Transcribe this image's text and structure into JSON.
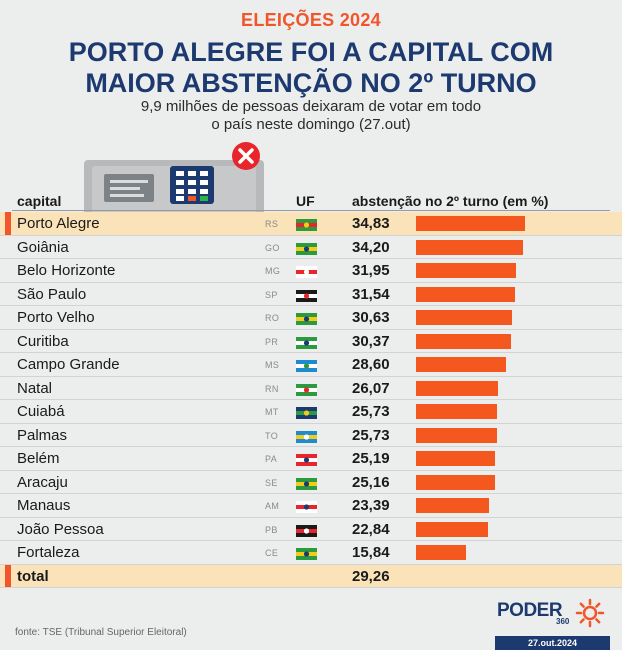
{
  "header": {
    "kicker": "ELEIÇÕES 2024",
    "headline_line1": "PORTO ALEGRE FOI A CAPITAL COM",
    "headline_line2": "MAIOR ABSTENÇÃO NO 2º TURNO",
    "subtitle_line1": "9,9 milhões de pessoas deixaram de votar em todo",
    "subtitle_line2": "o país neste domingo (27.out)"
  },
  "columns": {
    "capital": "capital",
    "uf": "UF",
    "abstention": "abstenção no 2º turno (em %)"
  },
  "colors": {
    "accent": "#f0562a",
    "bar": "#f5581f",
    "navy": "#1d3a70",
    "highlight": "#fbe3b9"
  },
  "chart_data": {
    "type": "bar",
    "orientation": "horizontal",
    "unit": "%",
    "xlim": [
      0,
      34.83
    ],
    "rows": [
      {
        "capital": "Porto Alegre",
        "uf": "RS",
        "value": 34.83,
        "label": "34,83",
        "highlight": true
      },
      {
        "capital": "Goiânia",
        "uf": "GO",
        "value": 34.2,
        "label": "34,20"
      },
      {
        "capital": "Belo Horizonte",
        "uf": "MG",
        "value": 31.95,
        "label": "31,95"
      },
      {
        "capital": "São Paulo",
        "uf": "SP",
        "value": 31.54,
        "label": "31,54"
      },
      {
        "capital": "Porto Velho",
        "uf": "RO",
        "value": 30.63,
        "label": "30,63"
      },
      {
        "capital": "Curitiba",
        "uf": "PR",
        "value": 30.37,
        "label": "30,37"
      },
      {
        "capital": "Campo Grande",
        "uf": "MS",
        "value": 28.6,
        "label": "28,60"
      },
      {
        "capital": "Natal",
        "uf": "RN",
        "value": 26.07,
        "label": "26,07"
      },
      {
        "capital": "Cuiabá",
        "uf": "MT",
        "value": 25.73,
        "label": "25,73"
      },
      {
        "capital": "Palmas",
        "uf": "TO",
        "value": 25.73,
        "label": "25,73"
      },
      {
        "capital": "Belém",
        "uf": "PA",
        "value": 25.19,
        "label": "25,19"
      },
      {
        "capital": "Aracaju",
        "uf": "SE",
        "value": 25.16,
        "label": "25,16"
      },
      {
        "capital": "Manaus",
        "uf": "AM",
        "value": 23.39,
        "label": "23,39"
      },
      {
        "capital": "João Pessoa",
        "uf": "PB",
        "value": 22.84,
        "label": "22,84"
      },
      {
        "capital": "Fortaleza",
        "uf": "CE",
        "value": 15.84,
        "label": "15,84"
      }
    ],
    "total": {
      "label": "total",
      "value": 29.26,
      "value_label": "29,26"
    }
  },
  "footer": {
    "source": "fonte: TSE (Tribunal Superior Eleitoral)",
    "brand": "PODER",
    "brand_suffix": "360",
    "date": "27.out.2024"
  }
}
